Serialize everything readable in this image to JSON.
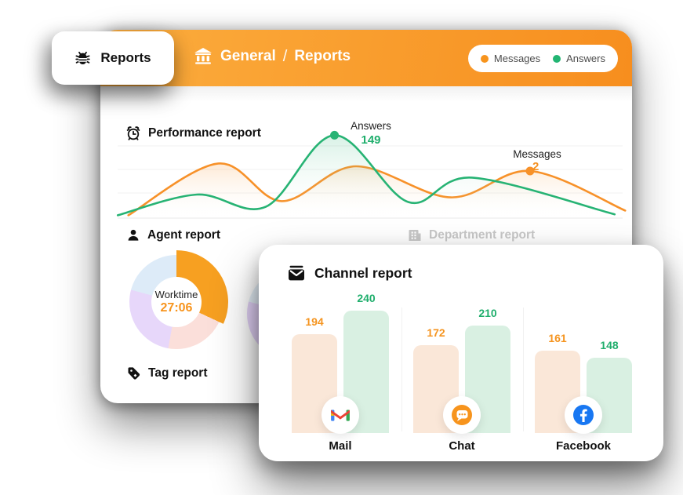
{
  "header": {
    "tab": {
      "label": "Reports"
    },
    "breadcrumb": {
      "section": "General",
      "separator": "/",
      "page": "Reports"
    },
    "legend": {
      "items": [
        {
          "label": "Messages",
          "color": "#F7941D"
        },
        {
          "label": "Answers",
          "color": "#22B573"
        }
      ]
    }
  },
  "sections": {
    "performance": {
      "title": "Performance report"
    },
    "agent": {
      "title": "Agent report"
    },
    "department": {
      "title": "Department report"
    },
    "tag": {
      "title": "Tag report"
    },
    "channel": {
      "title": "Channel report"
    }
  },
  "chart_data": [
    {
      "id": "performance",
      "type": "area",
      "title": "Performance report",
      "grid": true,
      "series": [
        {
          "name": "Messages",
          "color": "#F79129",
          "fill_top": "rgba(247,145,41,0.20)",
          "points_norm": [
            [
              0.05,
              0.03
            ],
            [
              0.22,
              0.58
            ],
            [
              0.34,
              0.18
            ],
            [
              0.48,
              0.55
            ],
            [
              0.66,
              0.22
            ],
            [
              0.81,
              0.5
            ],
            [
              0.99,
              0.08
            ]
          ],
          "marker_index": 5,
          "marker_label": "Messages",
          "marker_value": "2"
        },
        {
          "name": "Answers",
          "color": "#27B374",
          "fill_top": "rgba(39,179,116,0.18)",
          "points_norm": [
            [
              0.03,
              0.03
            ],
            [
              0.18,
              0.25
            ],
            [
              0.31,
              0.12
            ],
            [
              0.44,
              0.88
            ],
            [
              0.58,
              0.17
            ],
            [
              0.7,
              0.43
            ],
            [
              0.97,
              0.04
            ]
          ],
          "marker_index": 3,
          "marker_label": "Answers",
          "marker_value": "149"
        }
      ]
    },
    {
      "id": "worktime_donut",
      "type": "pie",
      "center_label": "Worktime",
      "center_value": "27:06",
      "segments": [
        {
          "name": "worktime-orange",
          "color": "#F7A021",
          "start": 0,
          "end": 115,
          "exploded": true
        },
        {
          "name": "segment-pink",
          "color": "#FBDFDA",
          "start": 115,
          "end": 190
        },
        {
          "name": "segment-purple",
          "color": "#E7D7FA",
          "start": 190,
          "end": 285
        },
        {
          "name": "segment-blue",
          "color": "#DDEBF8",
          "start": 285,
          "end": 360
        }
      ]
    },
    {
      "id": "secondary_donut",
      "type": "pie",
      "segments": [
        {
          "name": "segment-orange",
          "color": "#F9E3CF",
          "start": 0,
          "end": 115
        },
        {
          "name": "segment-pink",
          "color": "#FBE4E0",
          "start": 115,
          "end": 190
        },
        {
          "name": "segment-purple",
          "color": "#E5D4F9",
          "start": 190,
          "end": 285
        },
        {
          "name": "segment-blue",
          "color": "#E7F1FA",
          "start": 285,
          "end": 360
        }
      ]
    },
    {
      "id": "channel_bars",
      "type": "bar",
      "title": "Channel report",
      "categories": [
        {
          "label": "Mail",
          "icon": "gmail-icon"
        },
        {
          "label": "Chat",
          "icon": "chat-icon"
        },
        {
          "label": "Facebook",
          "icon": "facebook-icon"
        }
      ],
      "series": [
        {
          "name": "Messages",
          "bar_color": "#FAE7D8",
          "label_color": "#F5941F",
          "values": [
            194,
            172,
            161
          ]
        },
        {
          "name": "Answers",
          "bar_color": "#D9F0E2",
          "label_color": "#1FAE6C",
          "values": [
            240,
            210,
            148
          ]
        }
      ]
    }
  ]
}
